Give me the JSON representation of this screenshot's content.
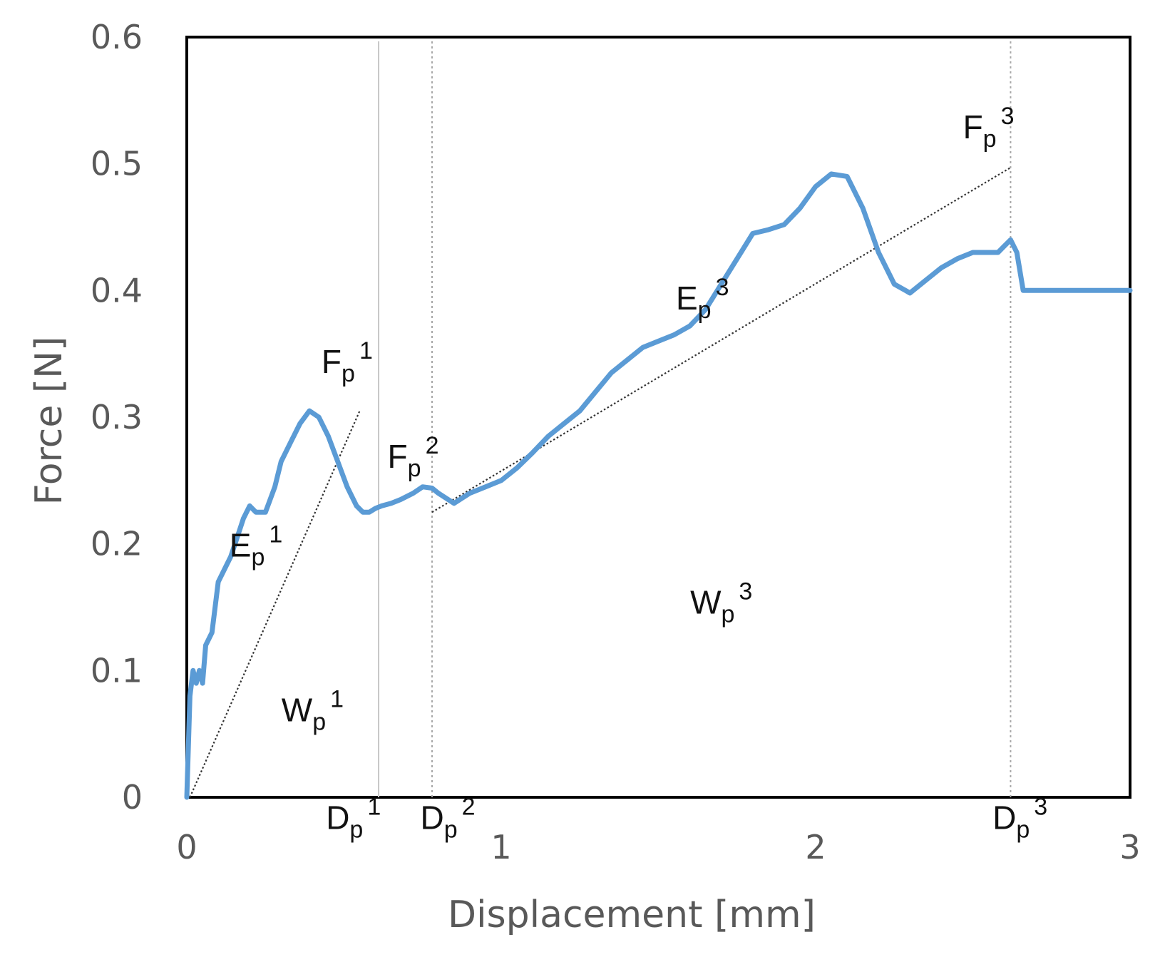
{
  "chart_data": {
    "type": "line",
    "xlabel": "Displacement [mm]",
    "ylabel": "Force [N]",
    "xlim": [
      0,
      3
    ],
    "ylim": [
      0,
      0.6
    ],
    "x_ticks": [
      "0",
      "1",
      "2",
      "3"
    ],
    "y_ticks": [
      "0",
      "0.1",
      "0.2",
      "0.3",
      "0.4",
      "0.5",
      "0.6"
    ],
    "grid": false,
    "legend": "none",
    "colors": {
      "series": "#5b9bd5",
      "frame": "#000000",
      "guides": "#bfbfbf",
      "secant": "#333333"
    },
    "series": [
      {
        "x": [
          0.0,
          0.01,
          0.02,
          0.03,
          0.04,
          0.05,
          0.06,
          0.07,
          0.08,
          0.09,
          0.1,
          0.12,
          0.14,
          0.16,
          0.18,
          0.2,
          0.22,
          0.25,
          0.28,
          0.3,
          0.33,
          0.36,
          0.39,
          0.42,
          0.45,
          0.48,
          0.51,
          0.54,
          0.56,
          0.58,
          0.6,
          0.62,
          0.65,
          0.68,
          0.72,
          0.75,
          0.78,
          0.8,
          0.85,
          0.9,
          0.95,
          1.0,
          1.05,
          1.1,
          1.15,
          1.2,
          1.25,
          1.3,
          1.35,
          1.4,
          1.45,
          1.5,
          1.55,
          1.6,
          1.65,
          1.7,
          1.75,
          1.8,
          1.85,
          1.9,
          1.95,
          2.0,
          2.05,
          2.1,
          2.15,
          2.2,
          2.25,
          2.3,
          2.35,
          2.4,
          2.45,
          2.5,
          2.55,
          2.58,
          2.6,
          2.62,
          2.64,
          2.66,
          2.68,
          2.7,
          2.72,
          2.74,
          2.76,
          2.78,
          2.8,
          2.83,
          2.86,
          2.88,
          2.91,
          2.93,
          2.95,
          2.97,
          2.98,
          2.99,
          3.0
        ],
        "y": [
          0.0,
          0.08,
          0.1,
          0.09,
          0.1,
          0.09,
          0.12,
          0.125,
          0.13,
          0.15,
          0.17,
          0.18,
          0.19,
          0.205,
          0.22,
          0.23,
          0.225,
          0.225,
          0.245,
          0.265,
          0.28,
          0.295,
          0.305,
          0.3,
          0.285,
          0.265,
          0.245,
          0.23,
          0.225,
          0.225,
          0.228,
          0.23,
          0.232,
          0.235,
          0.24,
          0.245,
          0.244,
          0.24,
          0.232,
          0.24,
          0.245,
          0.25,
          0.26,
          0.272,
          0.285,
          0.295,
          0.305,
          0.32,
          0.335,
          0.345,
          0.355,
          0.36,
          0.365,
          0.372,
          0.385,
          0.405,
          0.425,
          0.445,
          0.448,
          0.452,
          0.465,
          0.482,
          0.492,
          0.49,
          0.465,
          0.43,
          0.405,
          0.398,
          0.408,
          0.418,
          0.425,
          0.43,
          0.43,
          0.43,
          0.435,
          0.44,
          0.43,
          0.4,
          0.4,
          0.4,
          0.4,
          0.4,
          0.4,
          0.4,
          0.4,
          0.4,
          0.4,
          0.4,
          0.4,
          0.4,
          0.4,
          0.4,
          0.4,
          0.4,
          0.4
        ]
      }
    ],
    "guide_lines": [
      {
        "x": 0.61,
        "style": "solid"
      },
      {
        "x": 0.78,
        "style": "dotted"
      },
      {
        "x": 2.62,
        "style": "dotted"
      }
    ],
    "secants": [
      {
        "from": [
          0.01,
          0.0
        ],
        "to": [
          0.55,
          0.305
        ]
      },
      {
        "from": [
          0.78,
          0.225
        ],
        "to": [
          2.62,
          0.497
        ]
      }
    ],
    "annotations": [
      {
        "base": "F",
        "sub": "p",
        "sup": "1",
        "x": 0.51,
        "y": 0.335
      },
      {
        "base": "F",
        "sub": "p",
        "sup": "2",
        "x": 0.72,
        "y": 0.26
      },
      {
        "base": "F",
        "sub": "p",
        "sup": "3",
        "x": 2.55,
        "y": 0.52
      },
      {
        "base": "E",
        "sub": "p",
        "sup": "1",
        "x": 0.22,
        "y": 0.19
      },
      {
        "base": "E",
        "sub": "p",
        "sup": "3",
        "x": 1.64,
        "y": 0.385
      },
      {
        "base": "W",
        "sub": "p",
        "sup": "1",
        "x": 0.4,
        "y": 0.06
      },
      {
        "base": "W",
        "sub": "p",
        "sup": "3",
        "x": 1.7,
        "y": 0.145
      },
      {
        "base": "D",
        "sub": "p",
        "sup": "1",
        "x": 0.53,
        "y": -0.025
      },
      {
        "base": "D",
        "sub": "p",
        "sup": "2",
        "x": 0.83,
        "y": -0.025
      },
      {
        "base": "D",
        "sub": "p",
        "sup": "3",
        "x": 2.65,
        "y": -0.025
      }
    ]
  }
}
